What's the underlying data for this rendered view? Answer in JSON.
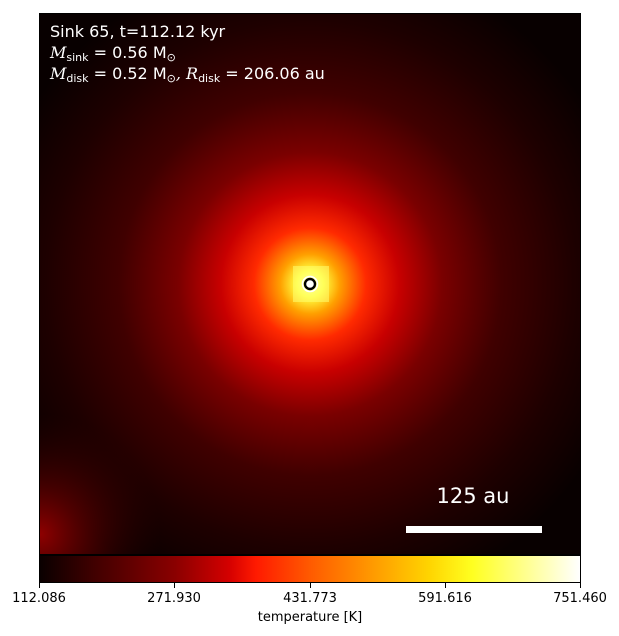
{
  "figure": {
    "title_line": "Sink 65, t=112.12 kyr",
    "m_sink_symbol": "M",
    "m_sink_sub": "sink",
    "m_sink_value": " = 0.56 M",
    "m_sink_unit_sub": "⊙",
    "m_disk_symbol": "M",
    "m_disk_sub": "disk",
    "m_disk_value": " = 0.52 M",
    "m_disk_unit_sub": "⊙",
    "r_disk_symbol": ", R",
    "r_disk_sub": "disk",
    "r_disk_value": " = 206.06 au",
    "scale_bar_label": "125 au"
  },
  "colorbar": {
    "label": "temperature [K]",
    "ticks": [
      "112.086",
      "271.930",
      "431.773",
      "591.616",
      "751.460"
    ]
  },
  "colors": {
    "hot_core": "#ffff60",
    "mid": "#ff2000",
    "cool": "#100000",
    "sink_marker": "#ffffff"
  }
}
